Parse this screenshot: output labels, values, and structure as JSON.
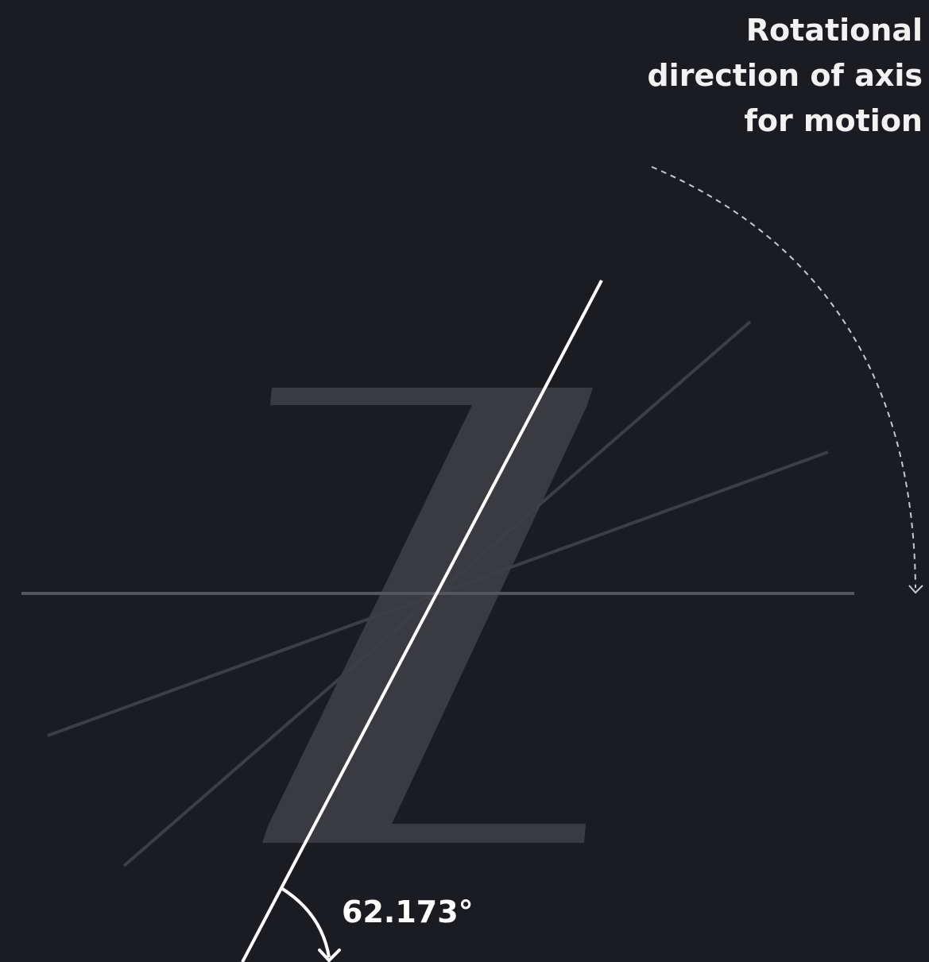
{
  "caption": {
    "line1": "Rotational",
    "line2": "direction of axis",
    "line3": "for motion"
  },
  "glyph": {
    "letter": "Z",
    "color": "#3a3a42"
  },
  "angle": {
    "value_degrees": 62.173,
    "label": "62.173°"
  },
  "colors": {
    "background": "#1b1b22",
    "main_axis": "#ffffff",
    "guide_lines": "#3d3d46",
    "baseline": "#55555e",
    "dashed_arc": "#c8c8d0",
    "text": "#f2f2f2"
  },
  "icons": {
    "arrow_head": "chevron-down-icon"
  }
}
